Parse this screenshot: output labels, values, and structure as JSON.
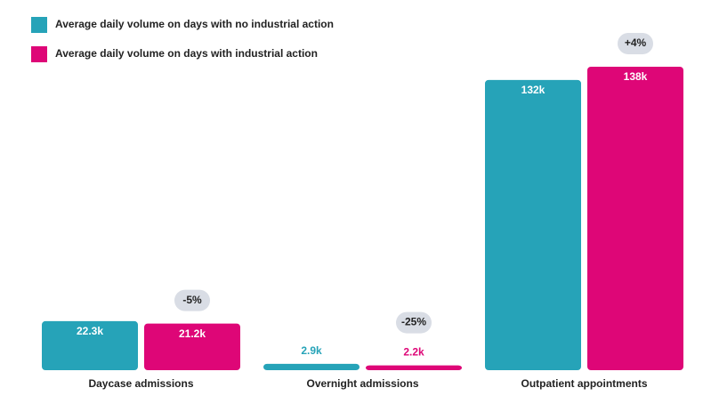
{
  "chart_data": {
    "type": "bar",
    "categories": [
      "Daycase admissions",
      "Overnight admissions",
      "Outpatient appointments"
    ],
    "series": [
      {
        "name": "Average daily volume on days with no industrial action",
        "color": "#26a3b8",
        "values": [
          22300,
          2900,
          132000
        ],
        "value_labels": [
          "22.3k",
          "2.9k",
          "132k"
        ]
      },
      {
        "name": "Average daily volume on days with industrial action",
        "color": "#de0677",
        "values": [
          21200,
          2200,
          138000
        ],
        "value_labels": [
          "21.2k",
          "2.2k",
          "138k"
        ]
      }
    ],
    "annotations": [
      "-5%",
      "-25%",
      "+4%"
    ]
  }
}
